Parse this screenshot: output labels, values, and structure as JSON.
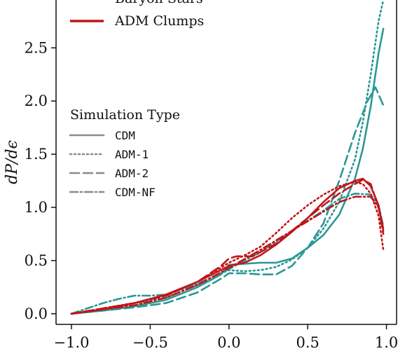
{
  "chart_data": {
    "type": "line",
    "title": "",
    "xlabel": "",
    "ylabel": "dP/dϵ",
    "xlim": [
      -1.0,
      1.0
    ],
    "ylim": [
      -0.1,
      2.95
    ],
    "xticks": [
      -1.0,
      -0.5,
      0.0,
      0.5,
      1.0
    ],
    "xtick_labels": [
      "−1.0",
      "−0.5",
      "0.0",
      "0.5",
      "1.0"
    ],
    "yticks": [
      0.0,
      0.5,
      1.0,
      1.5,
      2.0,
      2.5
    ],
    "ytick_labels": [
      "0.0",
      "0.5",
      "1.0",
      "1.5",
      "2.0",
      "2.5"
    ],
    "grid": false,
    "colors": {
      "baryon": "#2a9896",
      "adm": "#c0161a",
      "style_legend": "#8a8a8a",
      "axis": "#111111"
    },
    "series": [
      {
        "name": "",
        "group": "Baryon Stars",
        "sim": "CDM",
        "color": "#2a9896",
        "dash": "solid",
        "x": [
          -1.0,
          -0.8,
          -0.6,
          -0.4,
          -0.2,
          -0.05,
          0.0,
          0.1,
          0.2,
          0.3,
          0.4,
          0.5,
          0.6,
          0.7,
          0.8,
          0.85,
          0.9,
          0.95,
          0.98
        ],
        "y": [
          0.0,
          0.03,
          0.07,
          0.13,
          0.25,
          0.37,
          0.46,
          0.47,
          0.48,
          0.48,
          0.52,
          0.62,
          0.74,
          0.93,
          1.27,
          1.55,
          1.95,
          2.45,
          2.68
        ]
      },
      {
        "name": "",
        "group": "Baryon Stars",
        "sim": "ADM-1",
        "color": "#2a9896",
        "dash": "dotted",
        "x": [
          -1.0,
          -0.8,
          -0.6,
          -0.4,
          -0.2,
          -0.05,
          0.0,
          0.1,
          0.2,
          0.3,
          0.4,
          0.5,
          0.6,
          0.7,
          0.8,
          0.85,
          0.9,
          0.95,
          0.98
        ],
        "y": [
          0.0,
          0.05,
          0.1,
          0.15,
          0.27,
          0.38,
          0.41,
          0.4,
          0.41,
          0.44,
          0.51,
          0.62,
          0.8,
          1.05,
          1.45,
          1.8,
          2.25,
          2.75,
          2.95
        ]
      },
      {
        "name": "",
        "group": "Baryon Stars",
        "sim": "ADM-2",
        "color": "#2a9896",
        "dash": "dashed",
        "x": [
          -1.0,
          -0.8,
          -0.6,
          -0.4,
          -0.2,
          -0.05,
          0.0,
          0.1,
          0.2,
          0.3,
          0.4,
          0.5,
          0.6,
          0.7,
          0.8,
          0.88,
          0.93,
          0.98
        ],
        "y": [
          0.0,
          0.03,
          0.06,
          0.1,
          0.2,
          0.33,
          0.38,
          0.38,
          0.37,
          0.37,
          0.45,
          0.62,
          0.85,
          1.25,
          1.7,
          2.0,
          2.13,
          1.96
        ]
      },
      {
        "name": "",
        "group": "Baryon Stars",
        "sim": "CDM-NF",
        "color": "#2a9896",
        "dash": "dashdot",
        "x": [
          -1.0,
          -0.9,
          -0.8,
          -0.7,
          -0.6,
          -0.5,
          -0.4,
          -0.2,
          0.0,
          0.2,
          0.4,
          0.6,
          0.7,
          0.8,
          0.9,
          0.95,
          0.98
        ],
        "y": [
          0.0,
          0.05,
          0.1,
          0.14,
          0.17,
          0.17,
          0.18,
          0.28,
          0.42,
          0.58,
          0.78,
          0.97,
          1.08,
          1.13,
          1.12,
          1.02,
          0.82
        ]
      },
      {
        "name": "",
        "group": "ADM Clumps",
        "sim": "CDM",
        "color": "#c0161a",
        "dash": "solid",
        "x": [
          -1.0,
          -0.8,
          -0.6,
          -0.4,
          -0.2,
          0.0,
          0.1,
          0.2,
          0.3,
          0.4,
          0.5,
          0.6,
          0.7,
          0.8,
          0.85,
          0.9,
          0.95,
          0.98
        ],
        "y": [
          0.0,
          0.04,
          0.1,
          0.18,
          0.3,
          0.45,
          0.48,
          0.55,
          0.65,
          0.77,
          0.9,
          1.05,
          1.18,
          1.25,
          1.27,
          1.2,
          1.02,
          0.78
        ]
      },
      {
        "name": "",
        "group": "ADM Clumps",
        "sim": "ADM-1",
        "color": "#c0161a",
        "dash": "dotted",
        "x": [
          -1.0,
          -0.8,
          -0.6,
          -0.4,
          -0.2,
          0.0,
          0.1,
          0.2,
          0.3,
          0.4,
          0.5,
          0.6,
          0.7,
          0.8,
          0.85,
          0.9,
          0.95,
          0.98
        ],
        "y": [
          0.0,
          0.05,
          0.1,
          0.17,
          0.3,
          0.48,
          0.55,
          0.63,
          0.76,
          0.9,
          1.02,
          1.12,
          1.2,
          1.24,
          1.22,
          1.13,
          0.92,
          0.6
        ]
      },
      {
        "name": "",
        "group": "ADM Clumps",
        "sim": "ADM-2",
        "color": "#c0161a",
        "dash": "dashed",
        "x": [
          -1.0,
          -0.8,
          -0.6,
          -0.4,
          -0.2,
          -0.05,
          0.0,
          0.05,
          0.15,
          0.3,
          0.4,
          0.5,
          0.6,
          0.7,
          0.8,
          0.85,
          0.9,
          0.95,
          0.98
        ],
        "y": [
          0.0,
          0.05,
          0.1,
          0.17,
          0.3,
          0.45,
          0.52,
          0.54,
          0.54,
          0.66,
          0.78,
          0.9,
          1.02,
          1.13,
          1.22,
          1.26,
          1.22,
          1.0,
          0.75
        ]
      },
      {
        "name": "",
        "group": "ADM Clumps",
        "sim": "CDM-NF",
        "color": "#c0161a",
        "dash": "dashdot",
        "x": [
          -1.0,
          -0.8,
          -0.6,
          -0.4,
          -0.2,
          0.0,
          0.2,
          0.4,
          0.6,
          0.7,
          0.8,
          0.9,
          0.95,
          0.98
        ],
        "y": [
          0.0,
          0.04,
          0.08,
          0.15,
          0.27,
          0.43,
          0.6,
          0.78,
          0.96,
          1.05,
          1.1,
          1.1,
          1.0,
          0.8
        ]
      }
    ],
    "legend": {
      "placement": "upper-left",
      "color_entries": [
        {
          "label": "Baryon Stars",
          "color": "#2a9896"
        },
        {
          "label": "ADM Clumps",
          "color": "#c0161a"
        }
      ],
      "style_title": "Simulation Type",
      "style_entries": [
        {
          "label": "CDM",
          "dash": "solid"
        },
        {
          "label": "ADM-1",
          "dash": "dotted"
        },
        {
          "label": "ADM-2",
          "dash": "dashed"
        },
        {
          "label": "CDM-NF",
          "dash": "dashdot"
        }
      ]
    }
  }
}
